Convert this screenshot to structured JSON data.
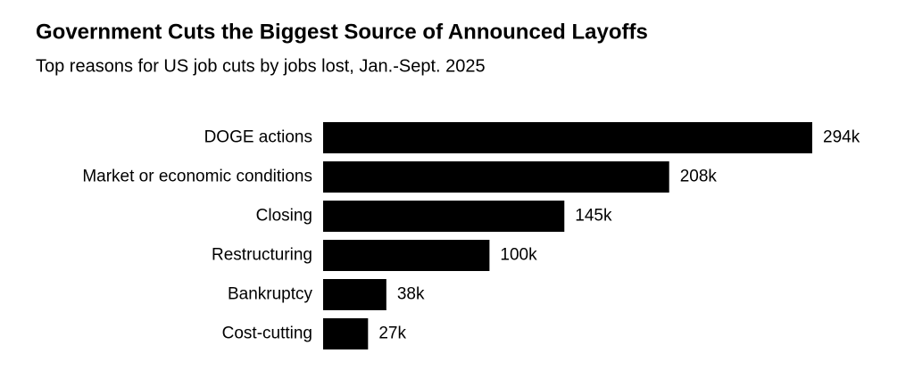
{
  "chart_data": {
    "type": "bar",
    "orientation": "horizontal",
    "title": "Government Cuts the Biggest Source of Announced Layoffs",
    "subtitle": "Top reasons for US job cuts by jobs lost, Jan.-Sept. 2025",
    "categories": [
      "DOGE actions",
      "Market or economic conditions",
      "Closing",
      "Restructuring",
      "Bankruptcy",
      "Cost-cutting"
    ],
    "values": [
      294000,
      208000,
      145000,
      100000,
      38000,
      27000
    ],
    "value_labels": [
      "294k",
      "208k",
      "145k",
      "100k",
      "38k",
      "27k"
    ],
    "color": "#000000"
  }
}
